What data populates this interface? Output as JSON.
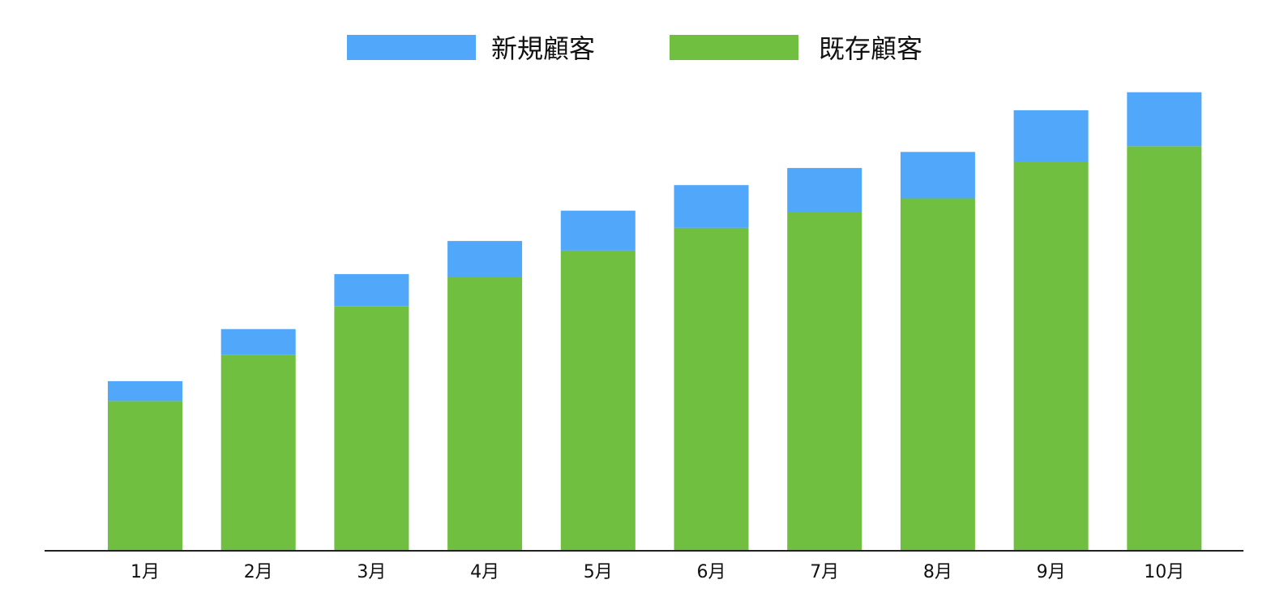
{
  "chart_data": {
    "type": "bar",
    "stacked": true,
    "categories": [
      "1月",
      "2月",
      "3月",
      "4月",
      "5月",
      "6月",
      "7月",
      "8月",
      "9月",
      "10月"
    ],
    "series": [
      {
        "name": "既存顧客",
        "color": "#70BF41",
        "values": [
          158,
          207,
          258,
          289,
          317,
          341,
          357,
          372,
          411,
          427
        ]
      },
      {
        "name": "新規顧客",
        "color": "#51A7F9",
        "values": [
          21,
          27,
          34,
          38,
          42,
          45,
          47,
          49,
          54,
          57
        ]
      }
    ],
    "legend": {
      "position": "top-center",
      "order": [
        "新規顧客",
        "既存顧客"
      ]
    },
    "ylim": [
      0,
      500
    ],
    "grid": false,
    "axis_color": "#222222"
  }
}
